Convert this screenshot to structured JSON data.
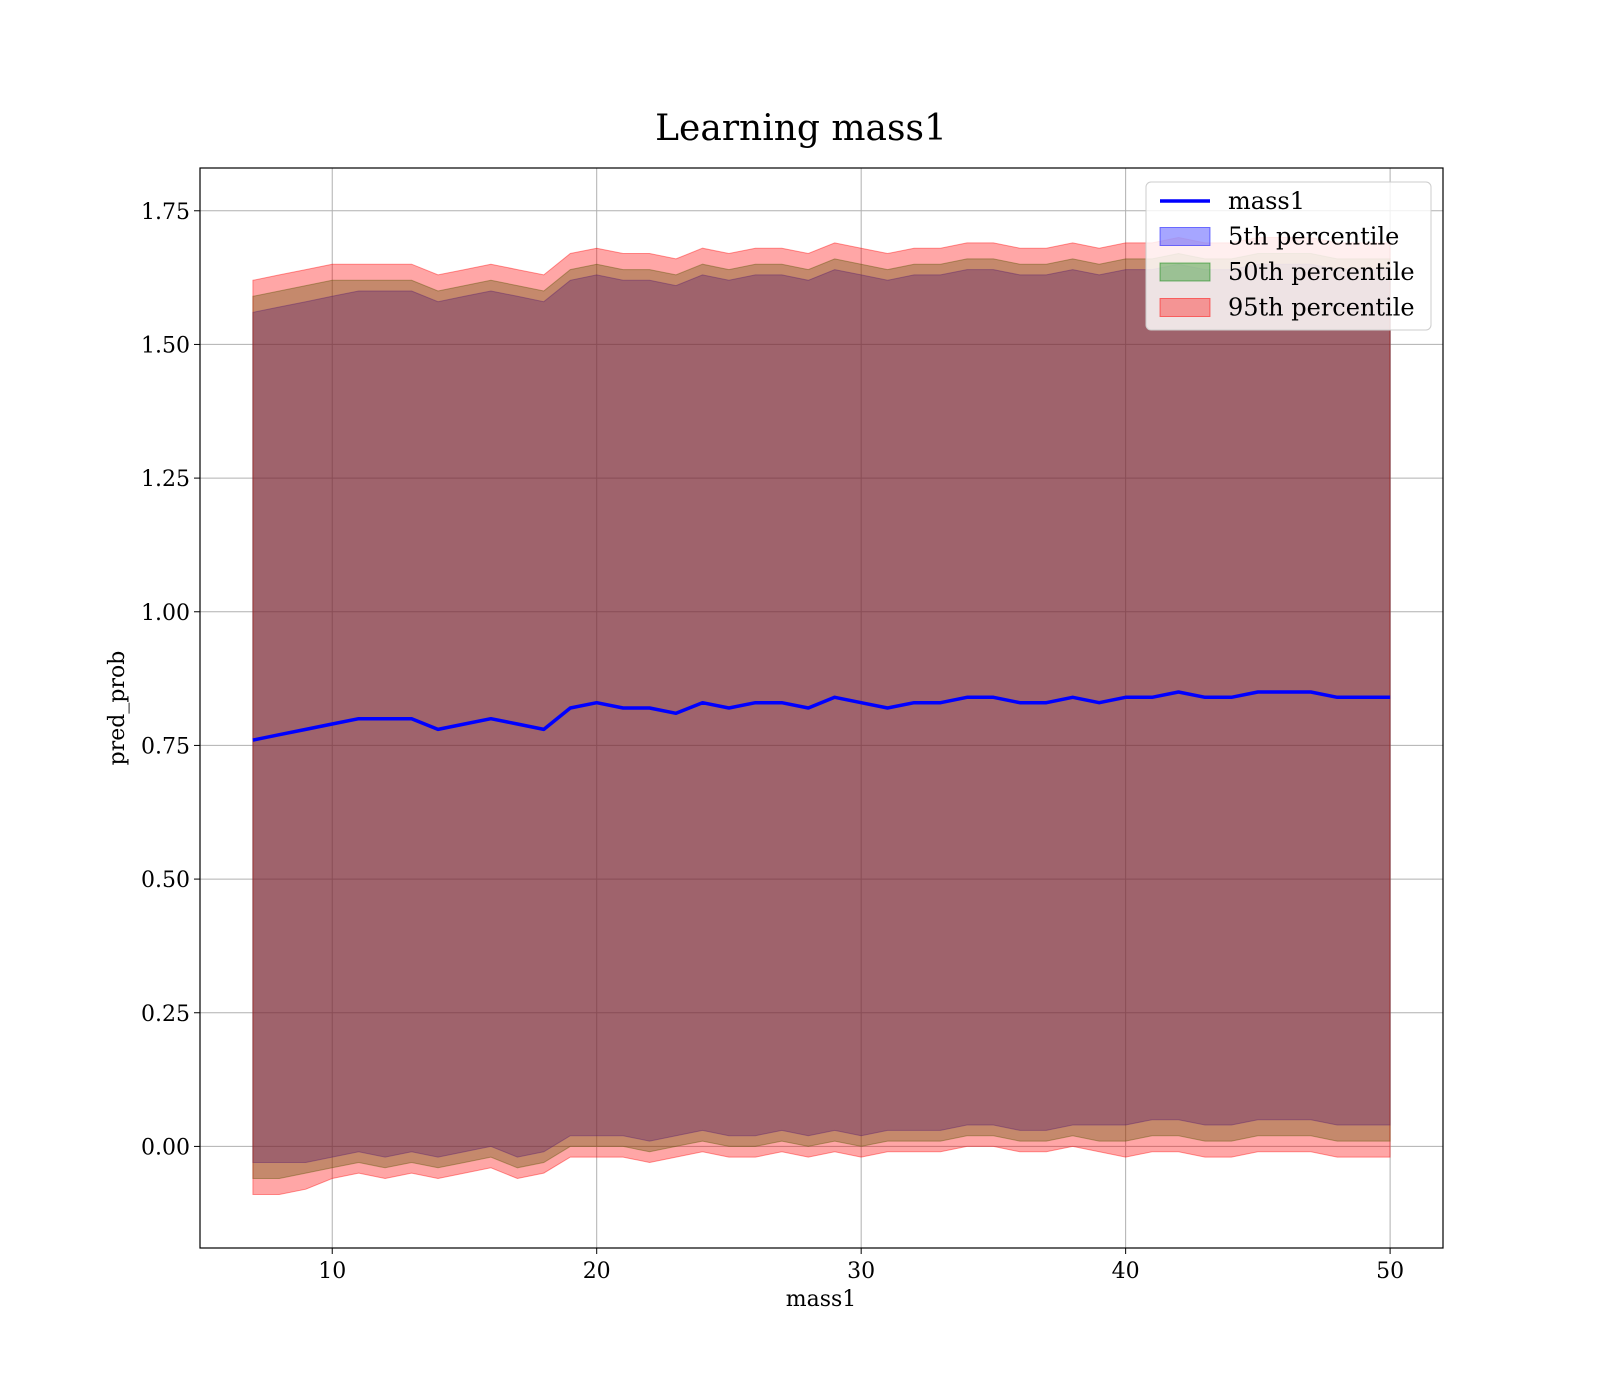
{
  "chart_data": {
    "type": "line",
    "title": "Learning mass1",
    "xlabel": "mass1",
    "ylabel": "pred_prob",
    "xlim": [
      5,
      52
    ],
    "ylim": [
      -0.19,
      1.83
    ],
    "xticks": [
      10,
      20,
      30,
      40,
      50
    ],
    "yticks": [
      0.0,
      0.25,
      0.5,
      0.75,
      1.0,
      1.25,
      1.5,
      1.75
    ],
    "grid": true,
    "legend_position": "top-right",
    "x": [
      7,
      8,
      9,
      10,
      11,
      12,
      13,
      14,
      15,
      16,
      17,
      18,
      19,
      20,
      21,
      22,
      23,
      24,
      25,
      26,
      27,
      28,
      29,
      30,
      31,
      32,
      33,
      34,
      35,
      36,
      37,
      38,
      39,
      40,
      41,
      42,
      43,
      44,
      45,
      46,
      47,
      48,
      49,
      50
    ],
    "series": [
      {
        "name": "mass1",
        "kind": "line",
        "color": "#0000ff",
        "values": [
          0.76,
          0.77,
          0.78,
          0.79,
          0.8,
          0.8,
          0.8,
          0.78,
          0.79,
          0.8,
          0.79,
          0.78,
          0.82,
          0.83,
          0.82,
          0.82,
          0.81,
          0.83,
          0.82,
          0.83,
          0.83,
          0.82,
          0.84,
          0.83,
          0.82,
          0.83,
          0.83,
          0.84,
          0.84,
          0.83,
          0.83,
          0.84,
          0.83,
          0.84,
          0.84,
          0.85,
          0.84,
          0.84,
          0.85,
          0.85,
          0.85,
          0.84,
          0.84,
          0.84
        ]
      },
      {
        "name": "5th percentile",
        "kind": "band",
        "color": "#0000ff",
        "lower": [
          -0.03,
          -0.03,
          -0.03,
          -0.02,
          -0.01,
          -0.02,
          -0.01,
          -0.02,
          -0.01,
          0.0,
          -0.02,
          -0.01,
          0.02,
          0.02,
          0.02,
          0.01,
          0.02,
          0.03,
          0.02,
          0.02,
          0.03,
          0.02,
          0.03,
          0.02,
          0.03,
          0.03,
          0.03,
          0.04,
          0.04,
          0.03,
          0.03,
          0.04,
          0.04,
          0.04,
          0.05,
          0.05,
          0.04,
          0.04,
          0.05,
          0.05,
          0.05,
          0.04,
          0.04,
          0.04
        ],
        "upper": [
          1.56,
          1.57,
          1.58,
          1.59,
          1.6,
          1.6,
          1.6,
          1.58,
          1.59,
          1.6,
          1.59,
          1.58,
          1.62,
          1.63,
          1.62,
          1.62,
          1.61,
          1.63,
          1.62,
          1.63,
          1.63,
          1.62,
          1.64,
          1.63,
          1.62,
          1.63,
          1.63,
          1.64,
          1.64,
          1.63,
          1.63,
          1.64,
          1.63,
          1.64,
          1.64,
          1.65,
          1.64,
          1.64,
          1.65,
          1.65,
          1.65,
          1.64,
          1.64,
          1.64
        ]
      },
      {
        "name": "50th percentile",
        "kind": "band",
        "color": "#008000",
        "lower": [
          -0.06,
          -0.06,
          -0.05,
          -0.04,
          -0.03,
          -0.04,
          -0.03,
          -0.04,
          -0.03,
          -0.02,
          -0.04,
          -0.03,
          0.0,
          0.0,
          0.0,
          -0.01,
          0.0,
          0.01,
          0.0,
          0.0,
          0.01,
          0.0,
          0.01,
          0.0,
          0.01,
          0.01,
          0.01,
          0.02,
          0.02,
          0.01,
          0.01,
          0.02,
          0.01,
          0.01,
          0.02,
          0.02,
          0.01,
          0.01,
          0.02,
          0.02,
          0.02,
          0.01,
          0.01,
          0.01
        ],
        "upper": [
          1.59,
          1.6,
          1.61,
          1.62,
          1.62,
          1.62,
          1.62,
          1.6,
          1.61,
          1.62,
          1.61,
          1.6,
          1.64,
          1.65,
          1.64,
          1.64,
          1.63,
          1.65,
          1.64,
          1.65,
          1.65,
          1.64,
          1.66,
          1.65,
          1.64,
          1.65,
          1.65,
          1.66,
          1.66,
          1.65,
          1.65,
          1.66,
          1.65,
          1.66,
          1.66,
          1.67,
          1.66,
          1.66,
          1.67,
          1.67,
          1.67,
          1.66,
          1.66,
          1.66
        ]
      },
      {
        "name": "95th percentile",
        "kind": "band",
        "color": "#ff0000",
        "lower": [
          -0.09,
          -0.09,
          -0.08,
          -0.06,
          -0.05,
          -0.06,
          -0.05,
          -0.06,
          -0.05,
          -0.04,
          -0.06,
          -0.05,
          -0.02,
          -0.02,
          -0.02,
          -0.03,
          -0.02,
          -0.01,
          -0.02,
          -0.02,
          -0.01,
          -0.02,
          -0.01,
          -0.02,
          -0.01,
          -0.01,
          -0.01,
          0.0,
          0.0,
          -0.01,
          -0.01,
          0.0,
          -0.01,
          -0.02,
          -0.01,
          -0.01,
          -0.02,
          -0.02,
          -0.01,
          -0.01,
          -0.01,
          -0.02,
          -0.02,
          -0.02
        ],
        "upper": [
          1.62,
          1.63,
          1.64,
          1.65,
          1.65,
          1.65,
          1.65,
          1.63,
          1.64,
          1.65,
          1.64,
          1.63,
          1.67,
          1.68,
          1.67,
          1.67,
          1.66,
          1.68,
          1.67,
          1.68,
          1.68,
          1.67,
          1.69,
          1.68,
          1.67,
          1.68,
          1.68,
          1.69,
          1.69,
          1.68,
          1.68,
          1.69,
          1.68,
          1.69,
          1.69,
          1.7,
          1.69,
          1.69,
          1.7,
          1.7,
          1.7,
          1.69,
          1.69,
          1.69
        ]
      }
    ]
  }
}
